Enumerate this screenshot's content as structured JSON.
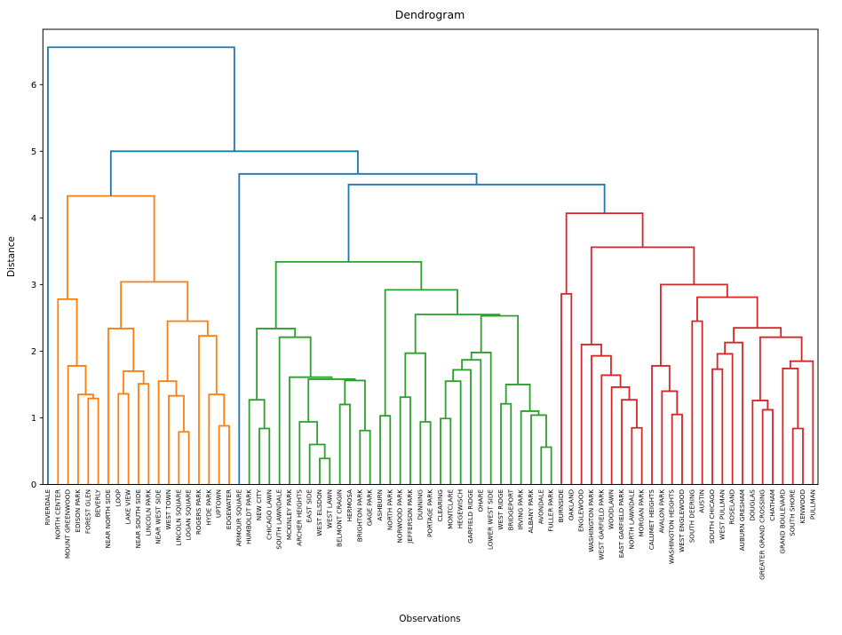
{
  "chart_data": {
    "type": "dendrogram",
    "title": "Dendrogram",
    "xlabel": "Observations",
    "ylabel": "Distance",
    "ylim": [
      0,
      6.83
    ],
    "yticks": [
      0,
      1,
      2,
      3,
      4,
      5,
      6
    ],
    "grid": false,
    "legend": "none",
    "colors": {
      "C0": "#1f77b4",
      "C1": "#ff7f0e",
      "C2": "#2ca02c",
      "C3": "#d62728"
    },
    "leaves": [
      "RIVERDALE",
      "NORTH CENTER",
      "MOUNT GREENWOOD",
      "EDISON PARK",
      "FOREST GLEN",
      "BEVERLY",
      "NEAR NORTH SIDE",
      "LOOP",
      "LAKE VIEW",
      "NEAR SOUTH SIDE",
      "LINCOLN PARK",
      "NEAR WEST SIDE",
      "WEST TOWN",
      "LINCOLN SQUARE",
      "LOGAN SQUARE",
      "ROGERS PARK",
      "HYDE PARK",
      "UPTOWN",
      "EDGEWATER",
      "ARMOUR SQUARE",
      "HUMBOLDT PARK",
      "NEW CITY",
      "CHICAGO LAWN",
      "SOUTH LAWNDALE",
      "MCKINLEY PARK",
      "ARCHER HEIGHTS",
      "EAST SIDE",
      "WEST ELSDON",
      "WEST LAWN",
      "BELMONT CRAGIN",
      "HERMOSA",
      "BRIGHTON PARK",
      "GAGE PARK",
      "ASHBURN",
      "NORTH PARK",
      "NORWOOD PARK",
      "JEFFERSON PARK",
      "DUNNING",
      "PORTAGE PARK",
      "CLEARING",
      "MONTCLARE",
      "HEGEWISCH",
      "GARFIELD RIDGE",
      "OHARE",
      "LOWER WEST SIDE",
      "WEST RIDGE",
      "BRIDGEPORT",
      "IRVING PARK",
      "ALBANY PARK",
      "AVONDALE",
      "FULLER PARK",
      "BURNSIDE",
      "OAKLAND",
      "ENGLEWOOD",
      "WASHINGTON PARK",
      "WEST GARFIELD PARK",
      "WOODLAWN",
      "EAST GARFIELD PARK",
      "NORTH LAWNDALE",
      "MORGAN PARK",
      "CALUMET HEIGHTS",
      "AVALON PARK",
      "WASHINGTON HEIGHTS",
      "WEST ENGLEWOOD",
      "SOUTH DEERING",
      "AUSTIN",
      "SOUTH CHICAGO",
      "WEST PULLMAN",
      "ROSELAND",
      "AUBURN GRESHAM",
      "DOUGLAS",
      "GREATER GRAND CROSSING",
      "CHATHAM",
      "GRAND BOULEVARD",
      "SOUTH SHORE",
      "KENWOOD",
      "PULLMAN"
    ],
    "linkage": [
      6.56,
      "C0",
      "RIVERDALE",
      [
        5.0,
        "C0",
        [
          4.33,
          "C1",
          [
            2.78,
            "C1",
            "NORTH CENTER",
            [
              1.78,
              "C1",
              "MOUNT GREENWOOD",
              [
                1.35,
                "C1",
                "EDISON PARK",
                [
                  1.29,
                  "C1",
                  "FOREST GLEN",
                  "BEVERLY"
                ]
              ]
            ]
          ],
          [
            3.04,
            "C1",
            [
              2.34,
              "C1",
              "NEAR NORTH SIDE",
              [
                1.7,
                "C1",
                [
                  1.36,
                  "C1",
                  "LOOP",
                  "LAKE VIEW"
                ],
                [
                  1.51,
                  "C1",
                  "NEAR SOUTH SIDE",
                  "LINCOLN PARK"
                ]
              ]
            ],
            [
              2.45,
              "C1",
              [
                1.55,
                "C1",
                "NEAR WEST SIDE",
                [
                  1.33,
                  "C1",
                  "WEST TOWN",
                  [
                    0.79,
                    "C1",
                    "LINCOLN SQUARE",
                    "LOGAN SQUARE"
                  ]
                ]
              ],
              [
                2.23,
                "C1",
                "ROGERS PARK",
                [
                  1.35,
                  "C1",
                  "HYDE PARK",
                  [
                    0.88,
                    "C1",
                    "UPTOWN",
                    "EDGEWATER"
                  ]
                ]
              ]
            ]
          ]
        ],
        [
          4.66,
          "C0",
          "ARMOUR SQUARE",
          [
            4.5,
            "C0",
            [
              3.34,
              "C2",
              [
                2.34,
                "C2",
                [
                  1.27,
                  "C2",
                  "HUMBOLDT PARK",
                  [
                    0.84,
                    "C2",
                    "NEW CITY",
                    "CHICAGO LAWN"
                  ]
                ],
                [
                  2.21,
                  "C2",
                  "SOUTH LAWNDALE",
                  [
                    1.61,
                    "C2",
                    "MCKINLEY PARK",
                    [
                      1.58,
                      "C2",
                      [
                        0.94,
                        "C2",
                        "ARCHER HEIGHTS",
                        [
                          0.6,
                          "C2",
                          "EAST SIDE",
                          [
                            0.39,
                            "C2",
                            "WEST ELSDON",
                            "WEST LAWN"
                          ]
                        ]
                      ],
                      [
                        1.56,
                        "C2",
                        [
                          1.2,
                          "C2",
                          "BELMONT CRAGIN",
                          "HERMOSA"
                        ],
                        [
                          0.81,
                          "C2",
                          "BRIGHTON PARK",
                          "GAGE PARK"
                        ]
                      ]
                    ]
                  ]
                ]
              ],
              [
                2.92,
                "C2",
                [
                  1.03,
                  "C2",
                  "ASHBURN",
                  "NORTH PARK"
                ],
                [
                  2.55,
                  "C2",
                  [
                    1.97,
                    "C2",
                    [
                      1.31,
                      "C2",
                      "NORWOOD PARK",
                      "JEFFERSON PARK"
                    ],
                    [
                      0.94,
                      "C2",
                      "DUNNING",
                      "PORTAGE PARK"
                    ]
                  ],
                  [
                    2.53,
                    "C2",
                    [
                      1.98,
                      "C2",
                      [
                        1.87,
                        "C2",
                        [
                          1.72,
                          "C2",
                          [
                            1.55,
                            "C2",
                            [
                              0.99,
                              "C2",
                              "CLEARING",
                              "MONTCLARE"
                            ],
                            "HEGEWISCH"
                          ],
                          "GARFIELD RIDGE"
                        ],
                        "OHARE"
                      ],
                      "LOWER WEST SIDE"
                    ],
                    [
                      1.5,
                      "C2",
                      [
                        1.21,
                        "C2",
                        "WEST RIDGE",
                        "BRIDGEPORT"
                      ],
                      [
                        1.1,
                        "C2",
                        "IRVING PARK",
                        [
                          1.04,
                          "C2",
                          "ALBANY PARK",
                          [
                            0.56,
                            "C2",
                            "AVONDALE",
                            "FULLER PARK"
                          ]
                        ]
                      ]
                    ]
                  ]
                ]
              ]
            ],
            [
              4.07,
              "C3",
              [
                2.86,
                "C3",
                "BURNSIDE",
                "OAKLAND"
              ],
              [
                3.56,
                "C3",
                [
                  2.1,
                  "C3",
                  "ENGLEWOOD",
                  [
                    1.93,
                    "C3",
                    "WASHINGTON PARK",
                    [
                      1.64,
                      "C3",
                      "WEST GARFIELD PARK",
                      [
                        1.46,
                        "C3",
                        "WOODLAWN",
                        [
                          1.27,
                          "C3",
                          "EAST GARFIELD PARK",
                          [
                            0.85,
                            "C3",
                            "NORTH LAWNDALE",
                            "MORGAN PARK"
                          ]
                        ]
                      ]
                    ]
                  ]
                ],
                [
                  3.0,
                  "C3",
                  [
                    1.78,
                    "C3",
                    "CALUMET HEIGHTS",
                    [
                      1.4,
                      "C3",
                      "AVALON PARK",
                      [
                        1.05,
                        "C3",
                        "WASHINGTON HEIGHTS",
                        "WEST ENGLEWOOD"
                      ]
                    ]
                  ],
                  [
                    2.81,
                    "C3",
                    [
                      2.45,
                      "C3",
                      "SOUTH DEERING",
                      "AUSTIN"
                    ],
                    [
                      2.35,
                      "C3",
                      [
                        2.13,
                        "C3",
                        [
                          1.96,
                          "C3",
                          [
                            1.73,
                            "C3",
                            "SOUTH CHICAGO",
                            "WEST PULLMAN"
                          ],
                          "ROSELAND"
                        ],
                        "AUBURN GRESHAM"
                      ],
                      [
                        2.21,
                        "C3",
                        [
                          1.26,
                          "C3",
                          "DOUGLAS",
                          [
                            1.12,
                            "C3",
                            "GREATER GRAND CROSSING",
                            "CHATHAM"
                          ]
                        ],
                        [
                          1.85,
                          "C3",
                          [
                            1.74,
                            "C3",
                            "GRAND BOULEVARD",
                            [
                              0.84,
                              "C3",
                              "SOUTH SHORE",
                              "KENWOOD"
                            ]
                          ],
                          "PULLMAN"
                        ]
                      ]
                    ]
                  ]
                ]
              ]
            ]
          ]
        ]
      ]
    ]
  }
}
